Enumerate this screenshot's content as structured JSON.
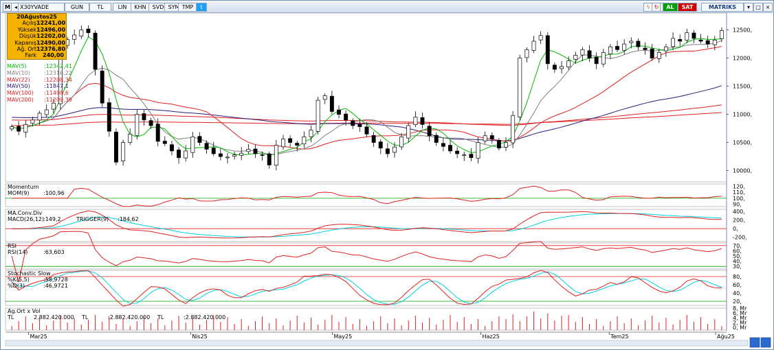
{
  "toolbar": {
    "title": "X30YVADE",
    "period": "GUN",
    "currency": "TL",
    "buttons": [
      "LIN",
      "KHN",
      "SVD",
      "SYM",
      "TMP"
    ],
    "buy_label": "AL",
    "sell_label": "SAT",
    "brand": "MATRIKS"
  },
  "info_box": {
    "date": "20Ağustos25",
    "rows": [
      {
        "label": "Açılış",
        "value": "12241,00"
      },
      {
        "label": "Yüksek",
        "value": "12496,00"
      },
      {
        "label": "Düşük",
        "value": "12202,00"
      },
      {
        "label": "Kapanış",
        "value": "12490,00"
      },
      {
        "label": "Ağ. Ort",
        "value": "12376,80"
      },
      {
        "label": "Fark",
        "value": "240,00"
      }
    ]
  },
  "ma_legend": [
    {
      "label": "MAV(5)",
      "value": ":12342,41",
      "color": "#00bb00"
    },
    {
      "label": "MAV(10)",
      "value": ":12316,22",
      "color": "#808080"
    },
    {
      "label": "MAV(22)",
      "value": ":12208,34",
      "color": "#e02020"
    },
    {
      "label": "MAV(50)",
      "value": ":11847,1",
      "color": "#2a1a7a"
    },
    {
      "label": "MAV(100)",
      "value": ":11498,6",
      "color": "#e02020"
    },
    {
      "label": "MAV(200)",
      "value": ":11209,39",
      "color": "#e02020"
    }
  ],
  "panels": {
    "momentum": {
      "title": "Momentum",
      "legend": "MOM(9)",
      "value": ":100,96"
    },
    "macd": {
      "title": "MA.Conv.Div",
      "legend": "MACD(26,12)",
      "value": ":149,2",
      "trigger_label": "TRIGGER(9)",
      "trigger_value": ":184,62"
    },
    "rsi": {
      "title": "RSI",
      "legend": "RSI(14)",
      "value": ":63,603"
    },
    "stoch": {
      "title": "Stochastic Slow",
      "k_label": "%K(5,5)",
      "k_value": ":58,9728",
      "d_label": "%D(3)",
      "d_value": ":46,9721"
    },
    "volume": {
      "title": "Ag.Ort x Vol",
      "unit": "TL",
      "value1": "2.882.420.000",
      "unit2": "TL",
      "value2": ":2.882.420.000",
      "unit3": "TL",
      "value3": ":2.882.420.000"
    }
  },
  "axes": {
    "price_ticks": [
      "12500,",
      "12000,",
      "11500,",
      "11000,",
      "10500,",
      "10000,"
    ],
    "mom_ticks": [
      "120,",
      "110,",
      "100,",
      "90,"
    ],
    "macd_ticks": [
      "400,",
      "200,",
      "0,",
      "-200,"
    ],
    "rsi_ticks": [
      "70,",
      "60,",
      "50,",
      "40,",
      "30,"
    ],
    "stoch_ticks": [
      "80,",
      "60,",
      "40,",
      "20,"
    ],
    "vol_ticks": [
      "8, Mr",
      "6, Mr",
      "4, Mr",
      "2, Mr",
      "0, Mr"
    ],
    "months": [
      "Mar25",
      "Nis25",
      "May25",
      "Haz25",
      "Tem25",
      "Ağu25"
    ]
  },
  "colors": {
    "up": "#ffffff",
    "down": "#000000",
    "mav5": "#00bb00",
    "mav10": "#808080",
    "mav22": "#e02020",
    "mav50": "#2a1a7a",
    "mav100": "#e02020",
    "mav200": "#e02020",
    "indicator": "#e02020",
    "signal": "#00d0e0",
    "guide_green": "#00a000",
    "guide_red": "#e02020",
    "info_bg": "#f5b300"
  },
  "chart_data": {
    "type": "candlestick",
    "symbol": "X30YVADE",
    "ylim": [
      9800,
      12800
    ],
    "closes": [
      10780,
      10700,
      10820,
      10900,
      11020,
      11080,
      11200,
      12200,
      12330,
      12410,
      12500,
      12450,
      11800,
      11200,
      10700,
      10150,
      10500,
      10650,
      11000,
      10900,
      10800,
      10520,
      10480,
      10350,
      10230,
      10350,
      10600,
      10500,
      10380,
      10300,
      10250,
      10240,
      10280,
      10310,
      10380,
      10300,
      10280,
      10100,
      10450,
      10560,
      10500,
      10450,
      10600,
      10720,
      11250,
      11330,
      11050,
      11000,
      10900,
      10800,
      10780,
      10650,
      10500,
      10400,
      10300,
      10420,
      10600,
      10800,
      10950,
      10820,
      10620,
      10500,
      10430,
      10350,
      10300,
      10280,
      10230,
      10500,
      10620,
      10560,
      10400,
      10500,
      10980,
      12000,
      12150,
      12300,
      12400,
      11900,
      11800,
      11850,
      11950,
      12050,
      12150,
      12000,
      11900,
      12100,
      12200,
      12150,
      12250,
      12300,
      12200,
      12150,
      12000,
      12100,
      12200,
      12350,
      12300,
      12450,
      12350,
      12300,
      12250,
      12320,
      12490
    ],
    "months": [
      "Mar25",
      "Nis25",
      "May25",
      "Haz25",
      "Tem25",
      "Ağu25"
    ]
  }
}
